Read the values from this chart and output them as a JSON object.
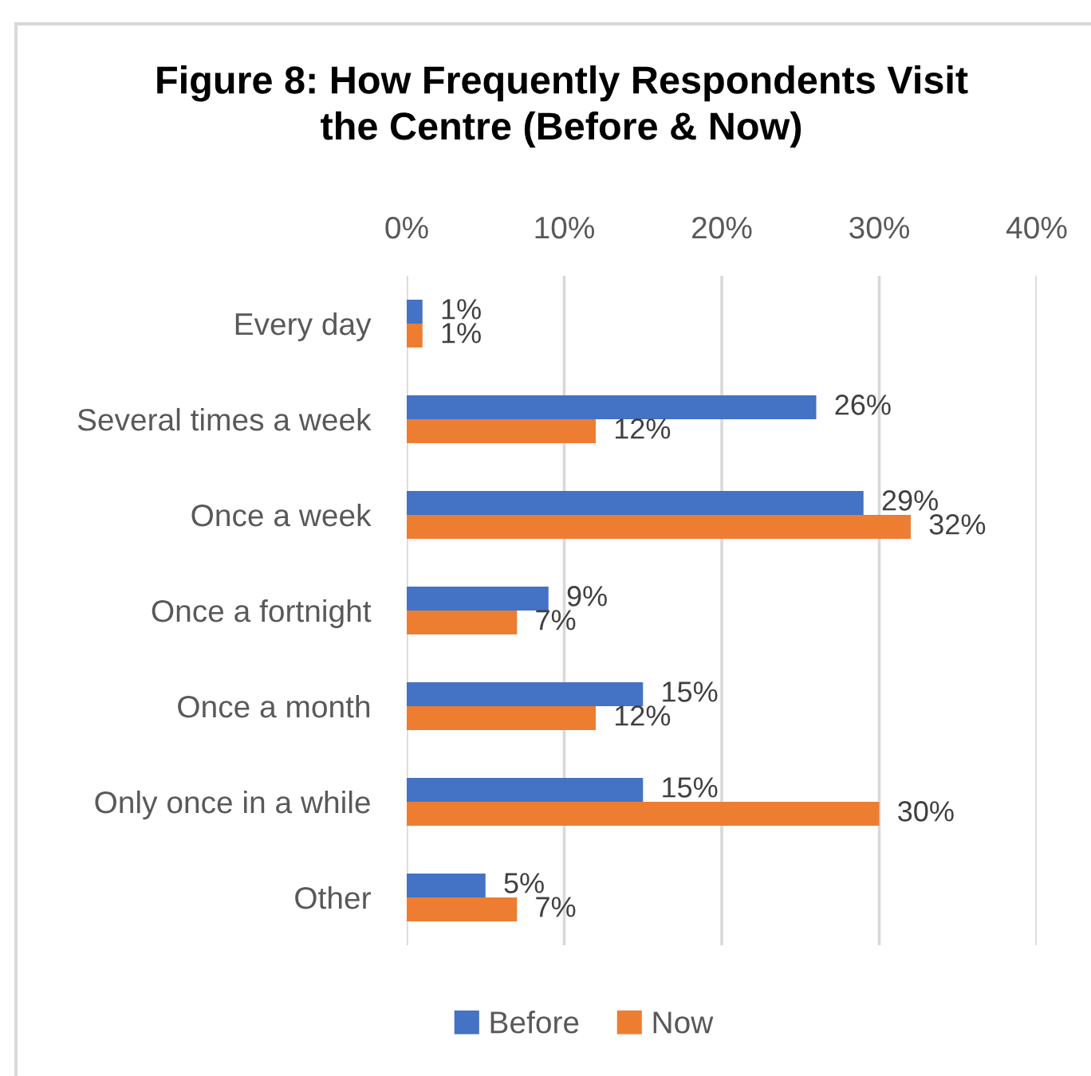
{
  "chart_data": {
    "type": "bar",
    "orientation": "horizontal",
    "title": "Figure 8: How Frequently Respondents Visit the Centre (Before & Now)",
    "categories": [
      "Every day",
      "Several times a week",
      "Once a week",
      "Once a fortnight",
      "Once a month",
      "Only once in a while",
      "Other"
    ],
    "series": [
      {
        "name": "Before",
        "color": "#4472c4",
        "values": [
          1,
          26,
          29,
          9,
          15,
          15,
          5
        ],
        "value_labels": [
          "1%",
          "26%",
          "29%",
          "9%",
          "15%",
          "15%",
          "5%"
        ]
      },
      {
        "name": "Now",
        "color": "#ed7d31",
        "values": [
          1,
          12,
          32,
          7,
          12,
          30,
          7
        ],
        "value_labels": [
          "1%",
          "12%",
          "32%",
          "7%",
          "12%",
          "30%",
          "7%"
        ]
      }
    ],
    "xlim": [
      0,
      40
    ],
    "xticks": [
      {
        "value": 0,
        "label": "0%"
      },
      {
        "value": 10,
        "label": "10%"
      },
      {
        "value": 20,
        "label": "20%"
      },
      {
        "value": 30,
        "label": "30%"
      },
      {
        "value": 40,
        "label": "40%"
      }
    ],
    "grid": "x",
    "legend": "bottom"
  }
}
